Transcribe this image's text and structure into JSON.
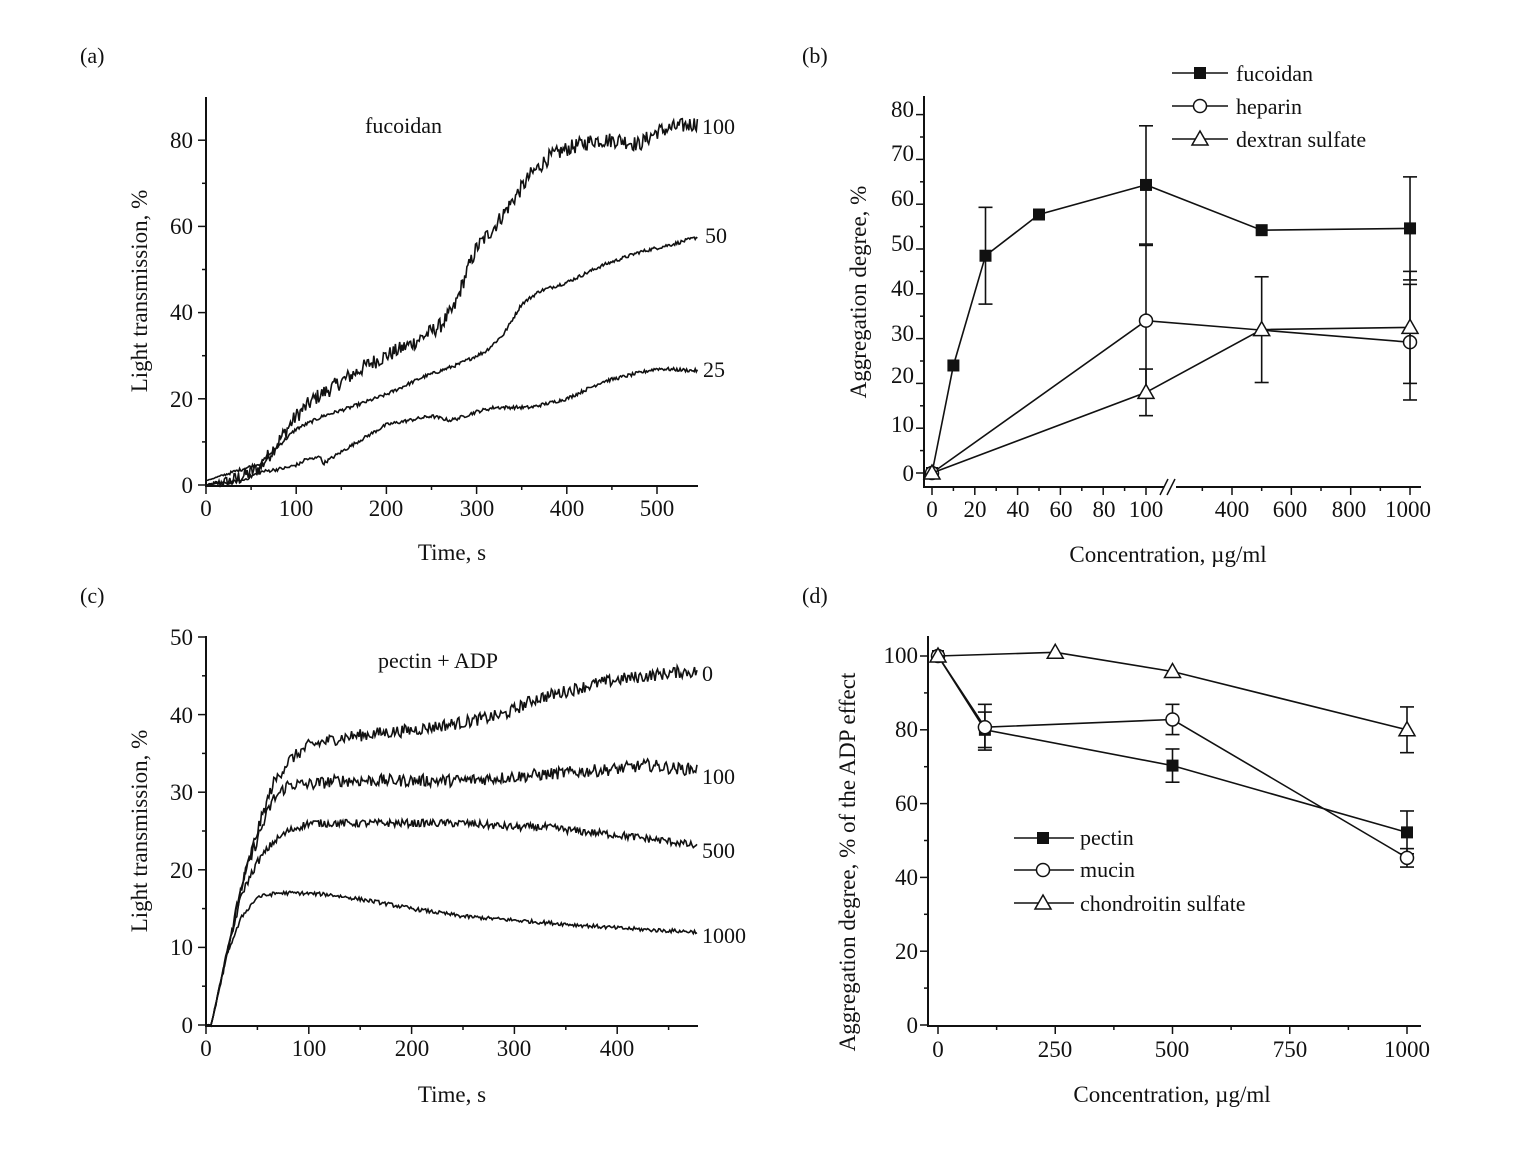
{
  "chart_data": [
    {
      "panel": "(a)",
      "type": "line",
      "annotation": "fucoidan",
      "xlabel": "Time, s",
      "ylabel": "Light transmission, %",
      "xlim": [
        0,
        545
      ],
      "ylim": [
        0,
        90
      ],
      "xticks": [
        0,
        100,
        200,
        300,
        400,
        500
      ],
      "yticks": [
        0,
        20,
        40,
        60,
        80
      ],
      "grid": false,
      "series": [
        {
          "name": "100",
          "x": [
            0,
            30,
            60,
            80,
            100,
            120,
            150,
            180,
            200,
            230,
            260,
            275,
            290,
            300,
            320,
            340,
            360,
            380,
            400,
            430,
            460,
            480,
            500,
            520,
            545
          ],
          "y": [
            0,
            1,
            4,
            10,
            16,
            20,
            24,
            28,
            30,
            33,
            37,
            41,
            50,
            55,
            60,
            66,
            72,
            76,
            78,
            80,
            80,
            79,
            82,
            83,
            84
          ],
          "noise": 1.8
        },
        {
          "name": "50",
          "x": [
            0,
            30,
            60,
            80,
            100,
            130,
            160,
            200,
            240,
            280,
            310,
            330,
            350,
            370,
            400,
            440,
            480,
            520,
            545
          ],
          "y": [
            1,
            3,
            5,
            9,
            13,
            16,
            18,
            21,
            25,
            28,
            31,
            35,
            42,
            45,
            47,
            51,
            54,
            56,
            57.5
          ],
          "noise": 0.4
        },
        {
          "name": "25",
          "x": [
            0,
            40,
            60,
            90,
            105,
            110,
            120,
            125,
            130,
            160,
            200,
            250,
            270,
            280,
            300,
            320,
            360,
            400,
            440,
            480,
            500,
            545
          ],
          "y": [
            0,
            1,
            3,
            4,
            5,
            6,
            6,
            7,
            5,
            9,
            14,
            16,
            15,
            15.5,
            17,
            18,
            18,
            20,
            24,
            26,
            27,
            26.5
          ],
          "noise": 0.4
        }
      ]
    },
    {
      "panel": "(b)",
      "type": "line",
      "xlabel": "Concentration, µg/ml",
      "ylabel": "Aggregation degree, %",
      "xaxis_break": "between 100 and 400",
      "xticks_segment1": [
        0,
        20,
        40,
        60,
        80,
        100
      ],
      "xticks_segment2": [
        400,
        600,
        800,
        1000
      ],
      "ylim": [
        -2,
        80
      ],
      "yticks": [
        0,
        10,
        20,
        30,
        40,
        50,
        60,
        70,
        80
      ],
      "legend_position": "top-right",
      "series": [
        {
          "name": "fucoidan",
          "marker": "filled-square",
          "x": [
            0,
            10,
            25,
            50,
            100,
            500,
            1000
          ],
          "y": [
            0,
            24,
            48.5,
            57.7,
            64.3,
            54.2,
            54.6
          ],
          "err": [
            null,
            null,
            10.8,
            null,
            13.2,
            null,
            11.5
          ]
        },
        {
          "name": "heparin",
          "marker": "open-circle",
          "x": [
            0,
            100,
            1000
          ],
          "y": [
            0,
            34,
            29.2
          ],
          "err": [
            null,
            16.8,
            12.9
          ]
        },
        {
          "name": "dextran sulfate",
          "marker": "open-triangle",
          "x": [
            0,
            100,
            500,
            1000
          ],
          "y": [
            0,
            18,
            32,
            32.5
          ],
          "err": [
            null,
            5.2,
            11.8,
            12.5
          ]
        }
      ]
    },
    {
      "panel": "(c)",
      "type": "line",
      "annotation": "pectin + ADP",
      "xlabel": "Time, s",
      "ylabel": "Light transmission, %",
      "xlim": [
        0,
        478
      ],
      "ylim": [
        0,
        50
      ],
      "xticks": [
        0,
        100,
        200,
        300,
        400
      ],
      "yticks": [
        0,
        10,
        20,
        30,
        40,
        50
      ],
      "grid": false,
      "series": [
        {
          "name": "0",
          "x": [
            0,
            5,
            20,
            35,
            50,
            65,
            80,
            100,
            130,
            160,
            200,
            250,
            290,
            320,
            350,
            380,
            400,
            430,
            460,
            478
          ],
          "y": [
            0,
            0,
            9,
            18,
            25,
            31,
            34,
            36,
            37,
            37.5,
            38,
            39,
            40,
            42,
            43,
            44,
            44.5,
            45,
            45.5,
            45.5
          ],
          "noise": 0.8
        },
        {
          "name": "100",
          "x": [
            0,
            5,
            20,
            35,
            50,
            65,
            80,
            100,
            130,
            160,
            200,
            250,
            300,
            350,
            400,
            430,
            460,
            478
          ],
          "y": [
            0,
            0,
            9,
            18,
            24,
            29,
            31,
            31,
            31.5,
            31.5,
            31.5,
            31.5,
            32,
            32.5,
            33,
            33.5,
            33,
            33
          ],
          "noise": 0.8
        },
        {
          "name": "500",
          "x": [
            0,
            5,
            20,
            35,
            50,
            65,
            80,
            100,
            150,
            200,
            250,
            300,
            330,
            360,
            400,
            430,
            460,
            478
          ],
          "y": [
            0,
            0,
            9,
            17,
            21,
            23.5,
            25,
            26,
            26,
            26,
            26,
            25.5,
            25.5,
            25,
            24.5,
            24,
            23.5,
            23
          ],
          "noise": 0.5
        },
        {
          "name": "1000",
          "x": [
            0,
            5,
            20,
            35,
            50,
            70,
            90,
            120,
            160,
            200,
            250,
            300,
            350,
            400,
            440,
            478
          ],
          "y": [
            0,
            0,
            9,
            14,
            16.5,
            17,
            17,
            16.8,
            16,
            15,
            14,
            13.5,
            13,
            12.5,
            12.2,
            12
          ],
          "noise": 0.25
        }
      ]
    },
    {
      "panel": "(d)",
      "type": "line",
      "xlabel": "Concentration, µg/ml",
      "ylabel": "Aggregation degree, % of the ADP effect",
      "xlim": [
        -50,
        1030
      ],
      "ylim": [
        0,
        105
      ],
      "xticks": [
        0,
        250,
        500,
        750,
        1000
      ],
      "yticks": [
        0,
        20,
        40,
        60,
        80,
        100
      ],
      "legend_position": "center-left",
      "series": [
        {
          "name": "pectin",
          "marker": "filled-square",
          "x": [
            0,
            100,
            500,
            1000
          ],
          "y": [
            100,
            80,
            70.3,
            52.2
          ],
          "err": [
            null,
            4.8,
            4.5,
            5.8
          ]
        },
        {
          "name": "mucin",
          "marker": "open-circle",
          "x": [
            0,
            100,
            500,
            1000
          ],
          "y": [
            100,
            80.7,
            82.8,
            45.3
          ],
          "err": [
            null,
            6.2,
            4.1,
            2.5
          ]
        },
        {
          "name": "chondroitin sulfate",
          "marker": "open-triangle",
          "x": [
            0,
            250,
            500,
            1000
          ],
          "y": [
            100,
            101,
            95.8,
            80
          ],
          "err": [
            null,
            null,
            null,
            6.2
          ]
        }
      ]
    }
  ],
  "labels": {
    "a": {
      "panel": "(a)",
      "annotation": "fucoidan",
      "xlabel": "Time, s",
      "ylabel": "Light transmission, %",
      "curves": [
        "100",
        "50",
        "25"
      ],
      "xticks": [
        "0",
        "100",
        "200",
        "300",
        "400",
        "500"
      ],
      "yticks": [
        "0",
        "20",
        "40",
        "60",
        "80"
      ]
    },
    "b": {
      "panel": "(b)",
      "xlabel": "Concentration, µg/ml",
      "ylabel": "Aggregation degree, %",
      "legend": [
        "fucoidan",
        "heparin",
        "dextran sulfate"
      ],
      "xticks": [
        "0",
        "20",
        "40",
        "60",
        "80",
        "100",
        "400",
        "600",
        "800",
        "1000"
      ],
      "yticks": [
        "0",
        "10",
        "20",
        "30",
        "40",
        "50",
        "60",
        "70",
        "80"
      ]
    },
    "c": {
      "panel": "(c)",
      "annotation": "pectin + ADP",
      "xlabel": "Time, s",
      "ylabel": "Light transmission, %",
      "curves": [
        "0",
        "100",
        "500",
        "1000"
      ],
      "xticks": [
        "0",
        "100",
        "200",
        "300",
        "400"
      ],
      "yticks": [
        "0",
        "10",
        "20",
        "30",
        "40",
        "50"
      ]
    },
    "d": {
      "panel": "(d)",
      "xlabel": "Concentration, µg/ml",
      "ylabel": "Aggregation degree, % of the ADP effect",
      "legend": [
        "pectin",
        "mucin",
        "chondroitin sulfate"
      ],
      "xticks": [
        "0",
        "250",
        "500",
        "750",
        "1000"
      ],
      "yticks": [
        "0",
        "20",
        "40",
        "60",
        "80",
        "100"
      ]
    }
  }
}
